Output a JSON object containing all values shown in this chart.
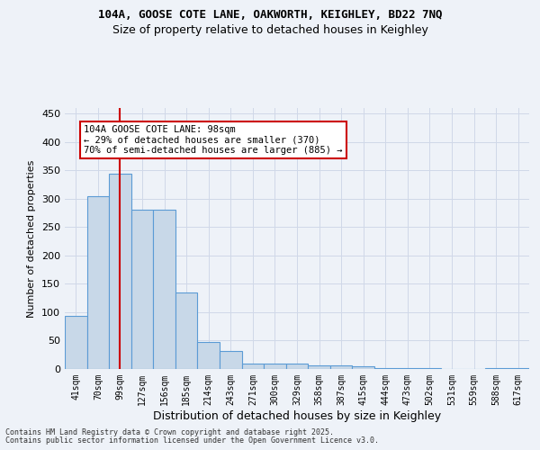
{
  "title1": "104A, GOOSE COTE LANE, OAKWORTH, KEIGHLEY, BD22 7NQ",
  "title2": "Size of property relative to detached houses in Keighley",
  "xlabel": "Distribution of detached houses by size in Keighley",
  "ylabel": "Number of detached properties",
  "categories": [
    "41sqm",
    "70sqm",
    "99sqm",
    "127sqm",
    "156sqm",
    "185sqm",
    "214sqm",
    "243sqm",
    "271sqm",
    "300sqm",
    "329sqm",
    "358sqm",
    "387sqm",
    "415sqm",
    "444sqm",
    "473sqm",
    "502sqm",
    "531sqm",
    "559sqm",
    "588sqm",
    "617sqm"
  ],
  "values": [
    93,
    305,
    345,
    280,
    280,
    135,
    47,
    32,
    10,
    10,
    9,
    7,
    7,
    4,
    2,
    1,
    1,
    0,
    0,
    2,
    2
  ],
  "bar_color": "#c8d8e8",
  "bar_edge_color": "#5b9bd5",
  "vline_x": 2,
  "vline_color": "#cc0000",
  "annotation_text": "104A GOOSE COTE LANE: 98sqm\n← 29% of detached houses are smaller (370)\n70% of semi-detached houses are larger (885) →",
  "annotation_box_color": "#ffffff",
  "annotation_box_edge": "#cc0000",
  "ylim": [
    0,
    460
  ],
  "yticks": [
    0,
    50,
    100,
    150,
    200,
    250,
    300,
    350,
    400,
    450
  ],
  "grid_color": "#d0d8e8",
  "background_color": "#eef2f8",
  "footer1": "Contains HM Land Registry data © Crown copyright and database right 2025.",
  "footer2": "Contains public sector information licensed under the Open Government Licence v3.0."
}
